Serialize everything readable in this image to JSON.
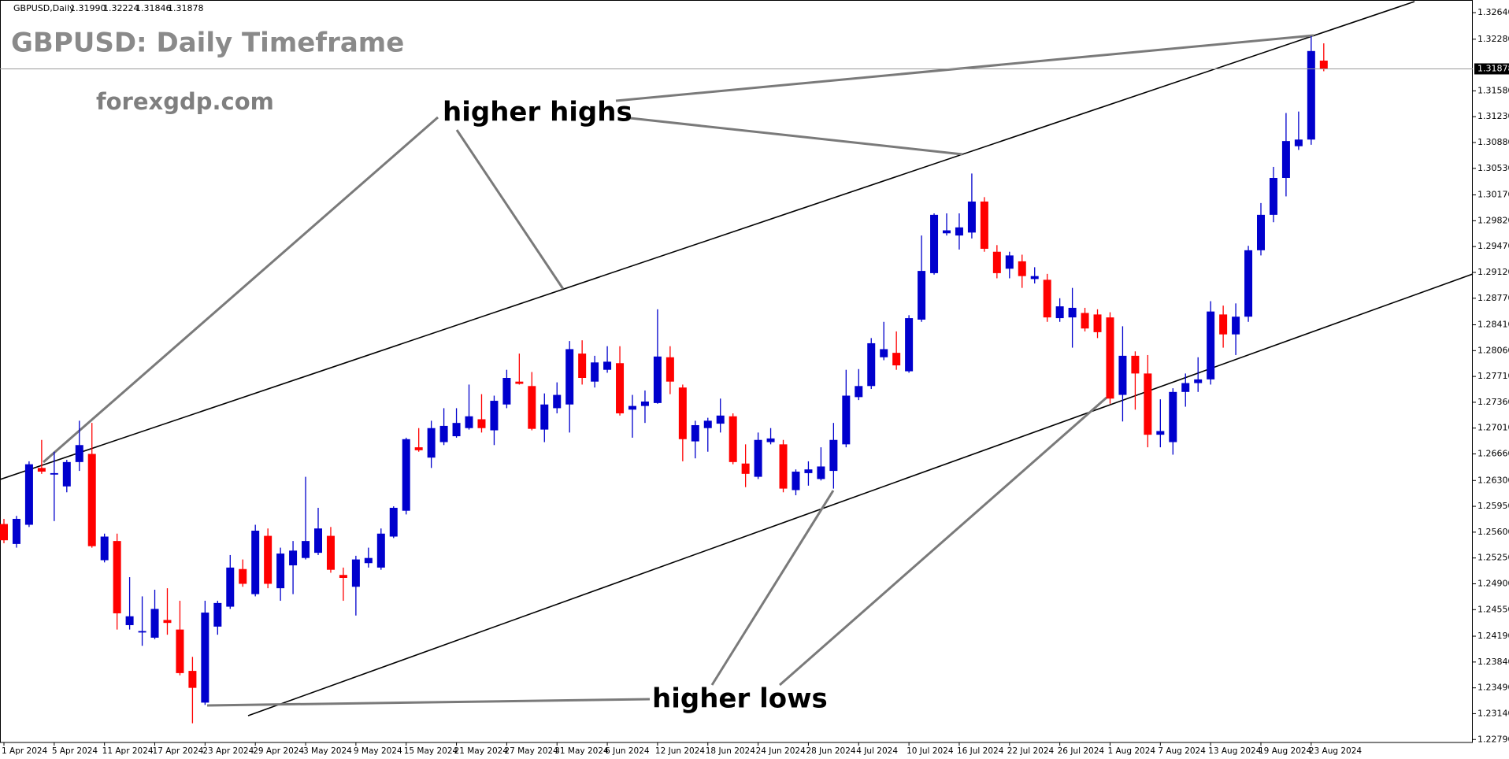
{
  "chart_data": {
    "type": "candlestick",
    "header": {
      "symbol": "GBPUSD,Daily",
      "ohlc": [
        "1.31990",
        "1.32224",
        "1.31846",
        "1.31878"
      ]
    },
    "title": "GBPUSD: Daily Timeframe",
    "subtitle": "forexgdp.com",
    "annotations": [
      "higher highs",
      "higher lows"
    ],
    "up_color": "#0000cd",
    "down_color": "#ff0000",
    "categories": [
      "1 Apr 2024",
      null,
      null,
      null,
      "5 Apr 2024",
      null,
      null,
      null,
      "11 Apr 2024",
      null,
      null,
      null,
      "17 Apr 2024",
      null,
      null,
      null,
      "23 Apr 2024",
      null,
      null,
      null,
      "29 Apr 2024",
      null,
      null,
      null,
      "3 May 2024",
      null,
      null,
      null,
      "9 May 2024",
      null,
      null,
      null,
      "15 May 2024",
      null,
      null,
      null,
      "21 May 2024",
      null,
      null,
      null,
      "27 May 2024",
      null,
      null,
      null,
      "31 May 2024",
      null,
      null,
      null,
      "6 Jun 2024",
      null,
      null,
      null,
      "12 Jun 2024",
      null,
      null,
      null,
      "18 Jun 2024",
      null,
      null,
      null,
      "24 Jun 2024",
      null,
      null,
      null,
      "28 Jun 2024",
      null,
      null,
      null,
      "4 Jul 2024",
      null,
      null,
      null,
      "10 Jul 2024",
      null,
      null,
      null,
      "16 Jul 2024",
      null,
      null,
      null,
      "22 Jul 2024",
      null,
      null,
      null,
      "26 Jul 2024",
      null,
      null,
      null,
      "1 Aug 2024",
      null,
      null,
      null,
      "7 Aug 2024",
      null,
      null,
      null,
      "13 Aug 2024",
      null,
      null,
      null,
      "19 Aug 2024",
      null,
      null,
      null,
      "23 Aug 2024",
      null
    ],
    "open": [
      1.2571,
      1.2544,
      1.257,
      1.2647,
      1.2638,
      1.2622,
      1.2655,
      1.2666,
      1.2522,
      1.2548,
      1.2434,
      1.2424,
      1.2417,
      1.2441,
      1.2428,
      1.2372,
      1.2329,
      1.2432,
      1.2459,
      1.251,
      1.2476,
      1.2555,
      1.2484,
      1.2515,
      1.2525,
      1.2532,
      1.2555,
      1.2502,
      1.2486,
      1.2518,
      1.2512,
      1.2554,
      1.2589,
      1.2675,
      1.2661,
      1.2682,
      1.269,
      1.2701,
      1.2713,
      1.2698,
      1.2733,
      1.2764,
      1.2758,
      1.2699,
      1.2728,
      1.2733,
      1.2802,
      1.2764,
      1.278,
      1.2789,
      1.2726,
      1.2731,
      1.2735,
      1.2797,
      1.2756,
      1.2683,
      1.2701,
      1.2707,
      1.2717,
      1.2653,
      1.2635,
      1.2682,
      1.2679,
      1.2617,
      1.264,
      1.2632,
      1.2643,
      1.2679,
      1.2743,
      1.2758,
      1.2797,
      1.2803,
      1.2778,
      1.2848,
      1.2911,
      1.2965,
      1.2962,
      1.2966,
      1.3008,
      1.294,
      1.2917,
      1.2927,
      1.2903,
      1.2902,
      1.285,
      1.2851,
      1.2857,
      1.2855,
      1.2851,
      1.2746,
      1.2799,
      1.2775,
      1.2692,
      1.2682,
      1.275,
      1.2762,
      1.2767,
      1.2855,
      1.2828,
      1.2852,
      1.2942,
      1.299,
      1.304,
      1.3083,
      1.3092,
      1.3199
    ],
    "high": [
      1.2578,
      1.2582,
      1.2656,
      1.2685,
      1.2669,
      1.2658,
      1.2711,
      1.2708,
      1.2558,
      1.2558,
      1.2499,
      1.2473,
      1.2482,
      1.2484,
      1.2467,
      1.2391,
      1.2467,
      1.2467,
      1.2529,
      1.2523,
      1.257,
      1.2565,
      1.2539,
      1.2548,
      1.2635,
      1.2593,
      1.2567,
      1.2512,
      1.2528,
      1.2539,
      1.2565,
      1.2595,
      1.2688,
      1.2701,
      1.2711,
      1.2728,
      1.2728,
      1.276,
      1.2747,
      1.2745,
      1.278,
      1.2802,
      1.2777,
      1.2748,
      1.2763,
      1.2819,
      1.282,
      1.2799,
      1.2812,
      1.2812,
      1.2746,
      1.2752,
      1.2862,
      1.2812,
      1.276,
      1.2711,
      1.2715,
      1.2741,
      1.2721,
      1.2679,
      1.2695,
      1.2701,
      1.2685,
      1.2645,
      1.2656,
      1.2675,
      1.2708,
      1.278,
      1.2781,
      1.2823,
      1.2845,
      1.2832,
      1.2854,
      1.2962,
      1.2992,
      1.2992,
      1.2992,
      1.3046,
      1.3014,
      1.2949,
      1.294,
      1.2936,
      1.2919,
      1.291,
      1.2877,
      1.2891,
      1.2864,
      1.2862,
      1.2858,
      1.2839,
      1.2805,
      1.28,
      1.274,
      1.2755,
      1.2775,
      1.2797,
      1.2873,
      1.2867,
      1.287,
      1.2948,
      1.3006,
      1.3055,
      1.3128,
      1.313,
      1.3232,
      1.32224
    ],
    "low": [
      1.2545,
      1.2539,
      1.2567,
      1.2639,
      1.2575,
      1.2614,
      1.2643,
      1.2539,
      1.2519,
      1.2428,
      1.2428,
      1.2406,
      1.2415,
      1.2421,
      1.2366,
      1.2301,
      1.2326,
      1.2421,
      1.2456,
      1.2486,
      1.2473,
      1.2484,
      1.2467,
      1.2476,
      1.2523,
      1.2529,
      1.2505,
      1.2467,
      1.2447,
      1.2512,
      1.2509,
      1.2552,
      1.2584,
      1.2669,
      1.2647,
      1.2678,
      1.2688,
      1.2699,
      1.2695,
      1.2678,
      1.2728,
      1.276,
      1.2698,
      1.2682,
      1.2721,
      1.2695,
      1.276,
      1.2756,
      1.2776,
      1.2718,
      1.2688,
      1.2708,
      1.2734,
      1.2747,
      1.2656,
      1.266,
      1.2669,
      1.2695,
      1.2652,
      1.2621,
      1.2632,
      1.2679,
      1.2614,
      1.261,
      1.2623,
      1.263,
      1.2619,
      1.2675,
      1.2739,
      1.2754,
      1.2793,
      1.278,
      1.2776,
      1.2845,
      1.2909,
      1.2962,
      1.2943,
      1.2958,
      1.294,
      1.2904,
      1.2904,
      1.2891,
      1.2897,
      1.2845,
      1.2845,
      1.281,
      1.2832,
      1.2823,
      1.2734,
      1.271,
      1.2726,
      1.2675,
      1.2675,
      1.2665,
      1.273,
      1.275,
      1.276,
      1.281,
      1.28,
      1.2845,
      1.2935,
      1.298,
      1.3015,
      1.3078,
      1.3085,
      1.31846
    ],
    "close": [
      1.2549,
      1.2578,
      1.2652,
      1.2642,
      1.264,
      1.2655,
      1.2678,
      1.2541,
      1.2554,
      1.245,
      1.2446,
      1.2426,
      1.2456,
      1.2437,
      1.2369,
      1.2349,
      1.2451,
      1.2464,
      1.2512,
      1.249,
      1.2562,
      1.249,
      1.2531,
      1.2535,
      1.2548,
      1.2565,
      1.2509,
      1.2498,
      1.2523,
      1.2525,
      1.2558,
      1.2593,
      1.2686,
      1.2671,
      1.2701,
      1.2704,
      1.2708,
      1.2717,
      1.2701,
      1.2738,
      1.2769,
      1.2761,
      1.27,
      1.2733,
      1.2746,
      1.2808,
      1.2769,
      1.279,
      1.2791,
      1.2721,
      1.2731,
      1.2737,
      1.2798,
      1.2764,
      1.2686,
      1.2705,
      1.2711,
      1.2718,
      1.2655,
      1.2639,
      1.2685,
      1.2687,
      1.2619,
      1.2642,
      1.2645,
      1.2649,
      1.2685,
      1.2745,
      1.2758,
      1.2816,
      1.2808,
      1.2786,
      1.285,
      1.2914,
      1.299,
      1.2969,
      1.2973,
      1.3008,
      1.2944,
      1.2911,
      1.2935,
      1.2907,
      1.2907,
      1.2851,
      1.2866,
      1.2864,
      1.2836,
      1.2831,
      1.2741,
      1.2799,
      1.2775,
      1.2692,
      1.2697,
      1.275,
      1.2762,
      1.2767,
      1.2859,
      1.2828,
      1.2852,
      1.2942,
      1.299,
      1.304,
      1.309,
      1.3092,
      1.3212,
      1.31878
    ],
    "last_price": {
      "value": 1.31878,
      "label": "1.31878"
    },
    "ylim": [
      1.2275,
      1.3279
    ],
    "yticks": [
      {
        "value": 1.2279,
        "label": "1.22790"
      },
      {
        "value": 1.2314,
        "label": "1.23140"
      },
      {
        "value": 1.2349,
        "label": "1.23490"
      },
      {
        "value": 1.2384,
        "label": "1.23840"
      },
      {
        "value": 1.2419,
        "label": "1.24190"
      },
      {
        "value": 1.2455,
        "label": "1.24550"
      },
      {
        "value": 1.249,
        "label": "1.24900"
      },
      {
        "value": 1.2525,
        "label": "1.25250"
      },
      {
        "value": 1.256,
        "label": "1.25600"
      },
      {
        "value": 1.2595,
        "label": "1.25950"
      },
      {
        "value": 1.263,
        "label": "1.26300"
      },
      {
        "value": 1.2666,
        "label": "1.26660"
      },
      {
        "value": 1.2701,
        "label": "1.27010"
      },
      {
        "value": 1.2736,
        "label": "1.27360"
      },
      {
        "value": 1.2771,
        "label": "1.27710"
      },
      {
        "value": 1.2806,
        "label": "1.28060"
      },
      {
        "value": 1.2841,
        "label": "1.28410"
      },
      {
        "value": 1.2877,
        "label": "1.28770"
      },
      {
        "value": 1.2912,
        "label": "1.29120"
      },
      {
        "value": 1.2947,
        "label": "1.29470"
      },
      {
        "value": 1.2982,
        "label": "1.29820"
      },
      {
        "value": 1.3017,
        "label": "1.30170"
      },
      {
        "value": 1.3053,
        "label": "1.30530"
      },
      {
        "value": 1.3088,
        "label": "1.30880"
      },
      {
        "value": 1.3123,
        "label": "1.31230"
      },
      {
        "value": 1.3158,
        "label": "1.31580"
      },
      {
        "value": 1.3228,
        "label": "1.32280"
      },
      {
        "value": 1.3264,
        "label": "1.32640"
      }
    ],
    "grid": false
  }
}
